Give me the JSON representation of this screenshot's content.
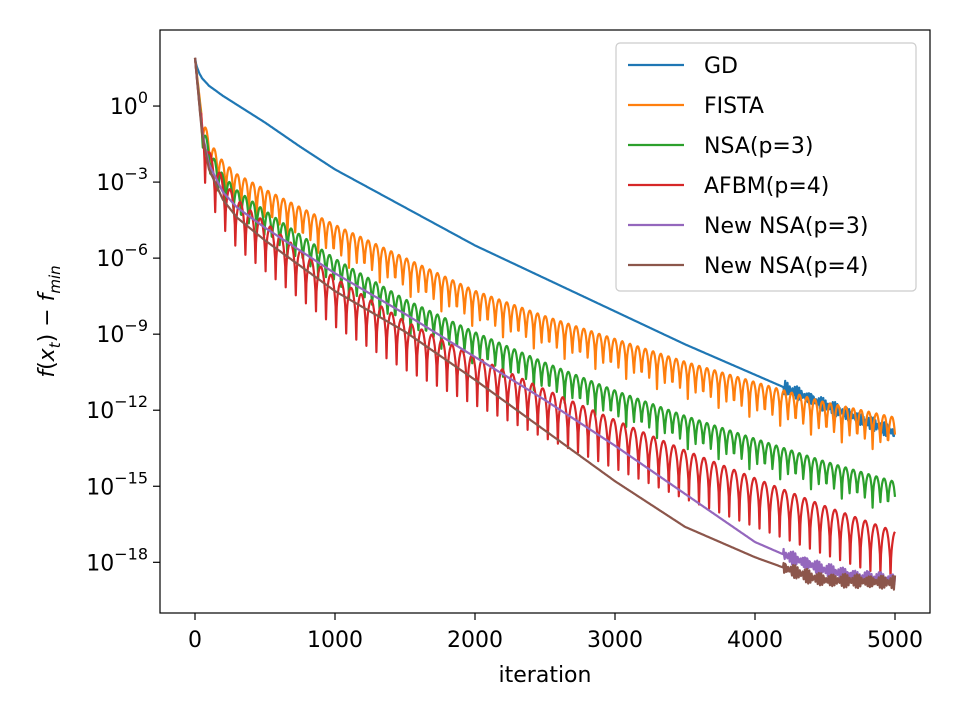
{
  "chart_data": {
    "type": "line",
    "xlabel": "iteration",
    "ylabel": "f(x_t) − f_min",
    "yscale": "log",
    "xlim": [
      -250,
      5250
    ],
    "ylim_exponent": [
      -20.0,
      3.0
    ],
    "x_ticks": [
      0,
      1000,
      2000,
      3000,
      4000,
      5000
    ],
    "x_tick_labels": [
      "0",
      "1000",
      "2000",
      "3000",
      "4000",
      "5000"
    ],
    "y_ticks_exponent": [
      0,
      -3,
      -6,
      -9,
      -12,
      -15,
      -18
    ],
    "y_tick_labels": [
      {
        "base": "10",
        "exp": "0"
      },
      {
        "base": "10",
        "exp": "−3"
      },
      {
        "base": "10",
        "exp": "−6"
      },
      {
        "base": "10",
        "exp": "−9"
      },
      {
        "base": "10",
        "exp": "−12"
      },
      {
        "base": "10",
        "exp": "−15"
      },
      {
        "base": "10",
        "exp": "−18"
      }
    ],
    "grid": false,
    "legend_position": "top-right",
    "series": [
      {
        "name": "GD",
        "color": "#1f77b4",
        "x": [
          0,
          10,
          30,
          50,
          100,
          200,
          300,
          500,
          750,
          1000,
          1500,
          2000,
          2500,
          3000,
          3500,
          4000,
          4500,
          5000
        ],
        "log10_y": [
          1.9,
          1.6,
          1.3,
          1.1,
          0.8,
          0.4,
          0.05,
          -0.65,
          -1.6,
          -2.5,
          -4.0,
          -5.5,
          -6.8,
          -8.1,
          -9.4,
          -10.6,
          -11.8,
          -12.9
        ],
        "oscillation_period": 0,
        "oscillation_depth": 0
      },
      {
        "name": "FISTA",
        "color": "#ff7f0e",
        "x": [
          0,
          50,
          100,
          200,
          300,
          500,
          1000,
          1500,
          2000,
          2500,
          3000,
          3500,
          4000,
          4500,
          5000
        ],
        "log10_y": [
          1.9,
          -0.5,
          -1.7,
          -2.5,
          -3.0,
          -3.6,
          -5.0,
          -6.3,
          -7.6,
          -8.6,
          -9.5,
          -10.4,
          -11.2,
          -12.0,
          -12.6
        ],
        "oscillation_period": 55,
        "oscillation_depth": 0.9
      },
      {
        "name": "NSA(p=3)",
        "color": "#2ca02c",
        "x": [
          0,
          50,
          100,
          200,
          300,
          500,
          1000,
          1500,
          2000,
          2500,
          3000,
          3500,
          4000,
          4500,
          5000
        ],
        "log10_y": [
          1.9,
          -0.8,
          -2.0,
          -3.0,
          -3.6,
          -4.4,
          -6.3,
          -7.9,
          -9.2,
          -10.4,
          -11.5,
          -12.5,
          -13.4,
          -14.3,
          -15.1
        ],
        "oscillation_period": 55,
        "oscillation_depth": 0.8
      },
      {
        "name": "AFBM(p=4)",
        "color": "#d62728",
        "x": [
          0,
          50,
          100,
          200,
          300,
          500,
          1000,
          1500,
          2000,
          2500,
          3000,
          3500,
          4000,
          4500,
          5000
        ],
        "log10_y": [
          1.9,
          -1.0,
          -2.2,
          -3.3,
          -4.1,
          -5.0,
          -7.2,
          -8.9,
          -10.3,
          -11.6,
          -12.8,
          -14.0,
          -15.1,
          -16.2,
          -17.2
        ],
        "oscillation_period": 72,
        "oscillation_depth": 1.2
      },
      {
        "name": "New NSA(p=3)",
        "color": "#9467bd",
        "x": [
          0,
          50,
          100,
          200,
          300,
          500,
          750,
          1000,
          1500,
          2000,
          2500,
          3000,
          3500,
          4000,
          4250,
          4500,
          4750,
          5000
        ],
        "log10_y": [
          1.9,
          -1.0,
          -2.3,
          -3.4,
          -4.0,
          -4.8,
          -5.7,
          -6.6,
          -8.2,
          -9.9,
          -11.6,
          -13.4,
          -15.3,
          -17.2,
          -17.8,
          -18.3,
          -18.6,
          -18.7
        ],
        "oscillation_period": 0,
        "oscillation_depth": 0
      },
      {
        "name": "New NSA(p=4)",
        "color": "#8c564b",
        "x": [
          0,
          50,
          100,
          200,
          300,
          500,
          750,
          1000,
          1500,
          2000,
          2500,
          3000,
          3500,
          4000,
          4250,
          4400,
          4500,
          5000
        ],
        "log10_y": [
          1.9,
          -1.1,
          -2.5,
          -3.7,
          -4.4,
          -5.3,
          -6.3,
          -7.3,
          -8.9,
          -10.8,
          -12.8,
          -14.8,
          -16.6,
          -17.8,
          -18.3,
          -18.6,
          -18.7,
          -18.8
        ],
        "oscillation_period": 0,
        "oscillation_depth": 0
      }
    ]
  }
}
